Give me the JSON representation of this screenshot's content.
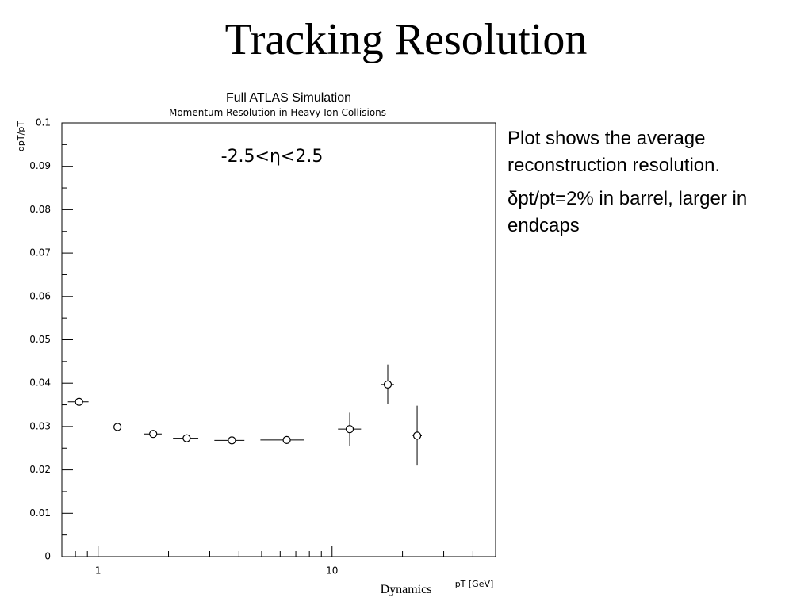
{
  "slide": {
    "title": "Tracking Resolution",
    "bullets": [
      "Plot shows the average reconstruction resolution.",
      "δpt/pt=2% in barrel, larger in endcaps"
    ],
    "footer": "Dynamics"
  },
  "chart_data": {
    "type": "scatter",
    "title": "Full ATLAS Simulation",
    "subtitle": "Momentum Resolution in Heavy Ion Collisions",
    "annotation": "-2.5<η<2.5",
    "xlabel": "pT [GeV]",
    "ylabel": "dpT/pT",
    "xscale": "log",
    "xlim": [
      0.7,
      50
    ],
    "xticks": [
      1,
      10
    ],
    "xminorticks": [
      0.8,
      0.9,
      2,
      3,
      4,
      5,
      6,
      7,
      8,
      9,
      20,
      30,
      40,
      50
    ],
    "ylim": [
      0,
      0.1
    ],
    "yticks": [
      0,
      0.01,
      0.02,
      0.03,
      0.04,
      0.05,
      0.06,
      0.07,
      0.08,
      0.09,
      0.1
    ],
    "color": "#000000",
    "x": [
      0.829,
      1.21,
      1.72,
      2.39,
      3.73,
      6.4,
      11.9,
      17.3,
      23.1
    ],
    "x_low": [
      0.743,
      1.065,
      1.57,
      2.09,
      3.14,
      4.94,
      10.6,
      16.2,
      22.1
    ],
    "x_high": [
      0.91,
      1.35,
      1.87,
      2.68,
      4.22,
      7.6,
      13.3,
      18.4,
      24.2
    ],
    "values": [
      0.0357,
      0.0299,
      0.0283,
      0.0273,
      0.0268,
      0.0269,
      0.0294,
      0.0397,
      0.0279
    ],
    "yerr": [
      0.0003,
      0.0003,
      0.0003,
      0.0003,
      0.0003,
      0.0003,
      0.0038,
      0.0046,
      0.0069
    ]
  }
}
